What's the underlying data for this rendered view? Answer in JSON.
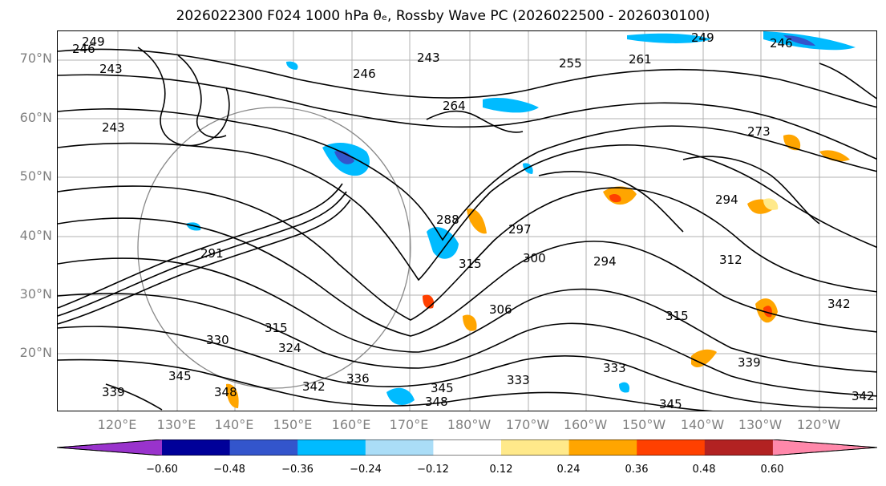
{
  "title": "2026022300 F024 1000 hPa θₑ, Rossby Wave PC (2026022500 - 2026030100)",
  "lat_labels": [
    "70°N",
    "60°N",
    "50°N",
    "40°N",
    "30°N",
    "20°N"
  ],
  "lon_labels": [
    "120°E",
    "130°E",
    "140°E",
    "150°E",
    "160°E",
    "170°E",
    "180°W",
    "170°W",
    "160°W",
    "150°W",
    "140°W",
    "130°W",
    "120°W"
  ],
  "colorbar": {
    "colors": [
      "#9933cc",
      "#000099",
      "#3355cc",
      "#00bbff",
      "#aaddf7",
      "#ffffff",
      "#ffe98a",
      "#ffa500",
      "#ff4000",
      "#b22222",
      "#ff88aa"
    ],
    "tick_labels": [
      "−0.60",
      "−0.48",
      "−0.36",
      "−0.24",
      "−0.12",
      "0.12",
      "0.24",
      "0.36",
      "0.48",
      "0.60"
    ]
  },
  "contour_labels": [
    "249",
    "246",
    "243",
    "246",
    "243",
    "255",
    "261",
    "264",
    "249",
    "246",
    "243",
    "273",
    "294",
    "288",
    "297",
    "300",
    "294",
    "315",
    "291",
    "330",
    "324",
    "315",
    "336",
    "342",
    "345",
    "348",
    "345",
    "348",
    "339",
    "333",
    "333",
    "339",
    "345",
    "342",
    "342",
    "312",
    "315",
    "306"
  ]
}
